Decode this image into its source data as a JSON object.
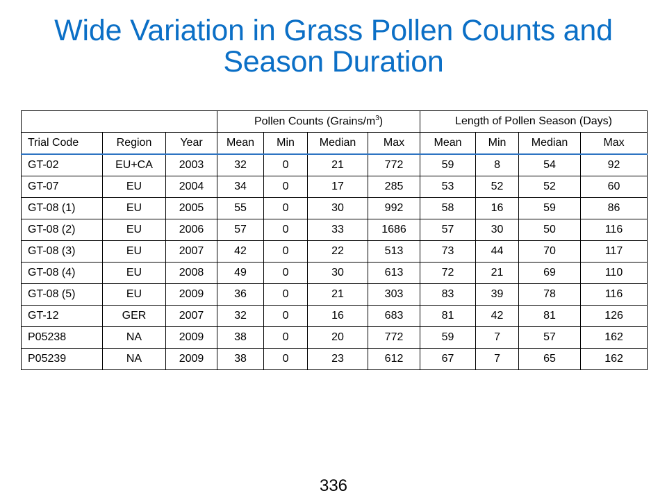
{
  "slide": {
    "title_line1": "Wide Variation in Grass Pollen Counts and",
    "title_line2": "Season Duration",
    "page_number": "336",
    "title_color": "#0b6fc6",
    "header_rule_color": "#2e74c2"
  },
  "table": {
    "group_headers": {
      "pollen_counts_prefix": "Pollen Counts (Grains/m",
      "pollen_counts_superscript": "3",
      "pollen_counts_suffix": ")",
      "season_length": "Length of Pollen Season (Days)"
    },
    "columns": [
      "Trial Code",
      "Region",
      "Year",
      "Mean",
      "Min",
      "Median",
      "Max",
      "Mean",
      "Min",
      "Median",
      "Max"
    ],
    "rows": [
      [
        "GT-02",
        "EU+CA",
        "2003",
        "32",
        "0",
        "21",
        "772",
        "59",
        "8",
        "54",
        "92"
      ],
      [
        "GT-07",
        "EU",
        "2004",
        "34",
        "0",
        "17",
        "285",
        "53",
        "52",
        "52",
        "60"
      ],
      [
        "GT-08 (1)",
        "EU",
        "2005",
        "55",
        "0",
        "30",
        "992",
        "58",
        "16",
        "59",
        "86"
      ],
      [
        "GT-08 (2)",
        "EU",
        "2006",
        "57",
        "0",
        "33",
        "1686",
        "57",
        "30",
        "50",
        "116"
      ],
      [
        "GT-08 (3)",
        "EU",
        "2007",
        "42",
        "0",
        "22",
        "513",
        "73",
        "44",
        "70",
        "117"
      ],
      [
        "GT-08 (4)",
        "EU",
        "2008",
        "49",
        "0",
        "30",
        "613",
        "72",
        "21",
        "69",
        "110"
      ],
      [
        "GT-08 (5)",
        "EU",
        "2009",
        "36",
        "0",
        "21",
        "303",
        "83",
        "39",
        "78",
        "116"
      ],
      [
        "GT-12",
        "GER",
        "2007",
        "32",
        "0",
        "16",
        "683",
        "81",
        "42",
        "81",
        "126"
      ],
      [
        "P05238",
        "NA",
        "2009",
        "38",
        "0",
        "20",
        "772",
        "59",
        "7",
        "57",
        "162"
      ],
      [
        "P05239",
        "NA",
        "2009",
        "38",
        "0",
        "23",
        "612",
        "67",
        "7",
        "65",
        "162"
      ]
    ]
  }
}
